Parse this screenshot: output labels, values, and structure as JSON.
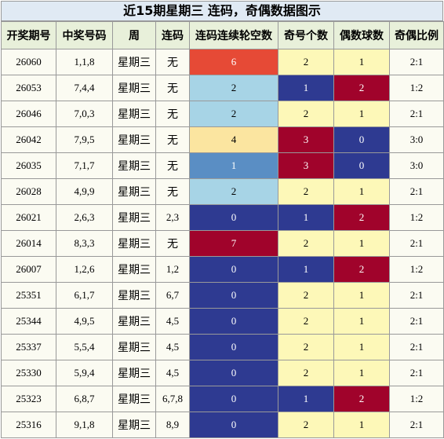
{
  "title": "近15期星期三 连码，奇偶数据图示",
  "headers": [
    "开奖期号",
    "中奖号码",
    "周",
    "连码",
    "连码连续轮空数",
    "奇号个数",
    "偶数球数",
    "奇偶比例"
  ],
  "colors": {
    "title_bg": "#e0eaf4",
    "header_bg": "#e8f0da",
    "cell_bg": "#fbfbf2",
    "light_blue": "#a7d4e6",
    "steel_blue": "#5a8ec4",
    "navy": "#2e3a91",
    "crimson": "#a0032b",
    "red_orange": "#e64a36",
    "pale_yellow": "#fbe5a0",
    "light_yellow": "#fdf8b8",
    "cream": "#fbfbf2"
  },
  "rows": [
    {
      "issue": "26060",
      "numbers": "1,1,8",
      "week": "星期三",
      "consec": "无",
      "gap": "6",
      "odd": "2",
      "even": "1",
      "ratio": "2:1",
      "gap_color": "#e64a36",
      "odd_color": "#fdf8b8",
      "even_color": "#fdf8b8"
    },
    {
      "issue": "26053",
      "numbers": "7,4,4",
      "week": "星期三",
      "consec": "无",
      "gap": "2",
      "odd": "1",
      "even": "2",
      "ratio": "1:2",
      "gap_color": "#a7d4e6",
      "odd_color": "#2e3a91",
      "even_color": "#a0032b"
    },
    {
      "issue": "26046",
      "numbers": "7,0,3",
      "week": "星期三",
      "consec": "无",
      "gap": "2",
      "odd": "2",
      "even": "1",
      "ratio": "2:1",
      "gap_color": "#a7d4e6",
      "odd_color": "#fdf8b8",
      "even_color": "#fdf8b8"
    },
    {
      "issue": "26042",
      "numbers": "7,9,5",
      "week": "星期三",
      "consec": "无",
      "gap": "4",
      "odd": "3",
      "even": "0",
      "ratio": "3:0",
      "gap_color": "#fbe5a0",
      "odd_color": "#a0032b",
      "even_color": "#2e3a91"
    },
    {
      "issue": "26035",
      "numbers": "7,1,7",
      "week": "星期三",
      "consec": "无",
      "gap": "1",
      "odd": "3",
      "even": "0",
      "ratio": "3:0",
      "gap_color": "#5a8ec4",
      "odd_color": "#a0032b",
      "even_color": "#2e3a91"
    },
    {
      "issue": "26028",
      "numbers": "4,9,9",
      "week": "星期三",
      "consec": "无",
      "gap": "2",
      "odd": "2",
      "even": "1",
      "ratio": "2:1",
      "gap_color": "#a7d4e6",
      "odd_color": "#fdf8b8",
      "even_color": "#fdf8b8"
    },
    {
      "issue": "26021",
      "numbers": "2,6,3",
      "week": "星期三",
      "consec": "2,3",
      "gap": "0",
      "odd": "1",
      "even": "2",
      "ratio": "1:2",
      "gap_color": "#2e3a91",
      "odd_color": "#2e3a91",
      "even_color": "#a0032b"
    },
    {
      "issue": "26014",
      "numbers": "8,3,3",
      "week": "星期三",
      "consec": "无",
      "gap": "7",
      "odd": "2",
      "even": "1",
      "ratio": "2:1",
      "gap_color": "#a0032b",
      "odd_color": "#fdf8b8",
      "even_color": "#fdf8b8"
    },
    {
      "issue": "26007",
      "numbers": "1,2,6",
      "week": "星期三",
      "consec": "1,2",
      "gap": "0",
      "odd": "1",
      "even": "2",
      "ratio": "1:2",
      "gap_color": "#2e3a91",
      "odd_color": "#2e3a91",
      "even_color": "#a0032b"
    },
    {
      "issue": "25351",
      "numbers": "6,1,7",
      "week": "星期三",
      "consec": "6,7",
      "gap": "0",
      "odd": "2",
      "even": "1",
      "ratio": "2:1",
      "gap_color": "#2e3a91",
      "odd_color": "#fdf8b8",
      "even_color": "#fdf8b8"
    },
    {
      "issue": "25344",
      "numbers": "4,9,5",
      "week": "星期三",
      "consec": "4,5",
      "gap": "0",
      "odd": "2",
      "even": "1",
      "ratio": "2:1",
      "gap_color": "#2e3a91",
      "odd_color": "#fdf8b8",
      "even_color": "#fdf8b8"
    },
    {
      "issue": "25337",
      "numbers": "5,5,4",
      "week": "星期三",
      "consec": "4,5",
      "gap": "0",
      "odd": "2",
      "even": "1",
      "ratio": "2:1",
      "gap_color": "#2e3a91",
      "odd_color": "#fdf8b8",
      "even_color": "#fdf8b8"
    },
    {
      "issue": "25330",
      "numbers": "5,9,4",
      "week": "星期三",
      "consec": "4,5",
      "gap": "0",
      "odd": "2",
      "even": "1",
      "ratio": "2:1",
      "gap_color": "#2e3a91",
      "odd_color": "#fdf8b8",
      "even_color": "#fdf8b8"
    },
    {
      "issue": "25323",
      "numbers": "6,8,7",
      "week": "星期三",
      "consec": "6,7,8",
      "gap": "0",
      "odd": "1",
      "even": "2",
      "ratio": "1:2",
      "gap_color": "#2e3a91",
      "odd_color": "#2e3a91",
      "even_color": "#a0032b"
    },
    {
      "issue": "25316",
      "numbers": "9,1,8",
      "week": "星期三",
      "consec": "8,9",
      "gap": "0",
      "odd": "2",
      "even": "1",
      "ratio": "2:1",
      "gap_color": "#2e3a91",
      "odd_color": "#fdf8b8",
      "even_color": "#fdf8b8"
    }
  ]
}
